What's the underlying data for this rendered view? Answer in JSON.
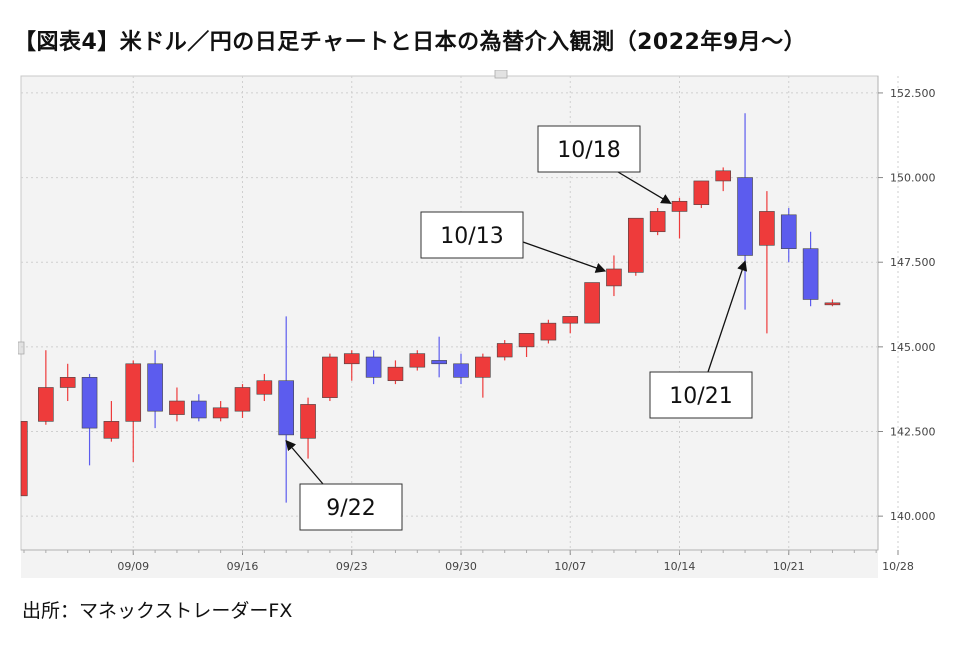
{
  "title": "【図表4】米ドル／円の日足チャートと日本の為替介入観測（2022年9月～）",
  "source": "出所：マネックストレーダーFX",
  "chart_data": {
    "type": "candlestick",
    "title": "【図表4】米ドル／円の日足チャートと日本の為替介入観測（2022年9月～）",
    "ylim": [
      139,
      153
    ],
    "y_ticks": [
      "140.000",
      "142.500",
      "145.000",
      "147.500",
      "150.000",
      "152.500"
    ],
    "x_ticks": [
      {
        "label": "09/09",
        "index": 5
      },
      {
        "label": "09/16",
        "index": 10
      },
      {
        "label": "09/23",
        "index": 15
      },
      {
        "label": "09/30",
        "index": 20
      },
      {
        "label": "10/07",
        "index": 25
      },
      {
        "label": "10/14",
        "index": 30
      },
      {
        "label": "10/21",
        "index": 35
      },
      {
        "label": "10/28",
        "index": 40
      }
    ],
    "grid": true,
    "up_color": "#ee3b3b",
    "down_color": "#5c5cee",
    "candles": [
      {
        "open": 140.6,
        "close": 142.8,
        "high": 142.8,
        "low": 140.6
      },
      {
        "open": 142.8,
        "close": 143.8,
        "high": 144.9,
        "low": 142.7
      },
      {
        "open": 143.8,
        "close": 144.1,
        "high": 144.5,
        "low": 143.4
      },
      {
        "open": 144.1,
        "close": 142.6,
        "high": 144.2,
        "low": 141.5
      },
      {
        "open": 142.3,
        "close": 142.8,
        "high": 143.4,
        "low": 142.2
      },
      {
        "open": 142.8,
        "close": 144.5,
        "high": 144.6,
        "low": 141.6
      },
      {
        "open": 144.5,
        "close": 143.1,
        "high": 144.9,
        "low": 142.6
      },
      {
        "open": 143.0,
        "close": 143.4,
        "high": 143.8,
        "low": 142.8
      },
      {
        "open": 143.4,
        "close": 142.9,
        "high": 143.6,
        "low": 142.8
      },
      {
        "open": 142.9,
        "close": 143.2,
        "high": 143.4,
        "low": 142.8
      },
      {
        "open": 143.1,
        "close": 143.8,
        "high": 143.9,
        "low": 142.9
      },
      {
        "open": 143.6,
        "close": 144.0,
        "high": 144.2,
        "low": 143.4
      },
      {
        "open": 144.0,
        "close": 142.4,
        "high": 145.9,
        "low": 140.4
      },
      {
        "open": 142.3,
        "close": 143.3,
        "high": 143.5,
        "low": 141.7
      },
      {
        "open": 143.5,
        "close": 144.7,
        "high": 144.8,
        "low": 143.4
      },
      {
        "open": 144.5,
        "close": 144.8,
        "high": 144.9,
        "low": 144.0
      },
      {
        "open": 144.7,
        "close": 144.1,
        "high": 144.9,
        "low": 143.9
      },
      {
        "open": 144.0,
        "close": 144.4,
        "high": 144.6,
        "low": 143.9
      },
      {
        "open": 144.4,
        "close": 144.8,
        "high": 144.9,
        "low": 144.3
      },
      {
        "open": 144.6,
        "close": 144.5,
        "high": 145.3,
        "low": 144.1
      },
      {
        "open": 144.5,
        "close": 144.1,
        "high": 144.8,
        "low": 143.9
      },
      {
        "open": 144.1,
        "close": 144.7,
        "high": 144.8,
        "low": 143.5
      },
      {
        "open": 144.7,
        "close": 145.1,
        "high": 145.2,
        "low": 144.6
      },
      {
        "open": 145.0,
        "close": 145.4,
        "high": 145.4,
        "low": 144.7
      },
      {
        "open": 145.2,
        "close": 145.7,
        "high": 145.8,
        "low": 145.1
      },
      {
        "open": 145.7,
        "close": 145.9,
        "high": 145.9,
        "low": 145.4
      },
      {
        "open": 145.7,
        "close": 146.9,
        "high": 146.9,
        "low": 145.7
      },
      {
        "open": 146.8,
        "close": 147.3,
        "high": 147.7,
        "low": 146.5
      },
      {
        "open": 147.2,
        "close": 148.8,
        "high": 148.8,
        "low": 147.1
      },
      {
        "open": 148.4,
        "close": 149.0,
        "high": 149.1,
        "low": 148.3
      },
      {
        "open": 149.0,
        "close": 149.3,
        "high": 149.4,
        "low": 148.2
      },
      {
        "open": 149.2,
        "close": 149.9,
        "high": 149.9,
        "low": 149.1
      },
      {
        "open": 149.9,
        "close": 150.2,
        "high": 150.3,
        "low": 149.6
      },
      {
        "open": 150.0,
        "close": 147.7,
        "high": 151.9,
        "low": 146.1
      },
      {
        "open": 148.0,
        "close": 149.0,
        "high": 149.6,
        "low": 145.4
      },
      {
        "open": 148.9,
        "close": 147.9,
        "high": 149.1,
        "low": 147.5
      },
      {
        "open": 147.9,
        "close": 146.4,
        "high": 148.4,
        "low": 146.2
      },
      {
        "open": 146.3,
        "close": 146.3,
        "high": 146.4,
        "low": 146.2
      }
    ],
    "annotations": [
      {
        "label": "9/22",
        "index": 12
      },
      {
        "label": "10/13",
        "index": 27
      },
      {
        "label": "10/18",
        "index": 30
      },
      {
        "label": "10/21",
        "index": 33
      }
    ]
  }
}
